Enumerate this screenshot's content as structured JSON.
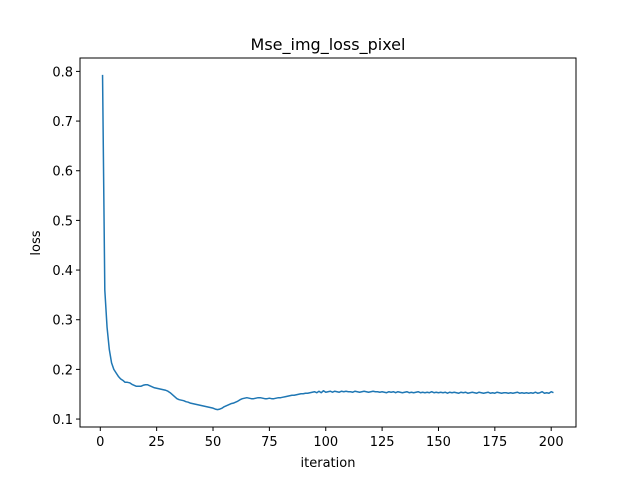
{
  "chart_data": {
    "type": "line",
    "title": "Mse_img_loss_pixel",
    "x_label": "iteration",
    "y_label": "loss",
    "xlim": [
      -9,
      211
    ],
    "ylim": [
      0.084,
      0.827
    ],
    "xticks": [
      0,
      25,
      50,
      75,
      100,
      125,
      150,
      175,
      200
    ],
    "yticks": [
      0.1,
      0.2,
      0.3,
      0.4,
      0.5,
      0.6,
      0.7,
      0.8
    ],
    "grid": false,
    "x": [
      1,
      2,
      3,
      4,
      5,
      6,
      7,
      8,
      9,
      10,
      11,
      12,
      13,
      14,
      15,
      16,
      17,
      18,
      19,
      20,
      21,
      22,
      23,
      24,
      25,
      26,
      27,
      28,
      29,
      30,
      31,
      32,
      33,
      34,
      35,
      36,
      37,
      38,
      39,
      40,
      41,
      42,
      43,
      44,
      45,
      46,
      47,
      48,
      49,
      50,
      51,
      52,
      53,
      54,
      55,
      56,
      57,
      58,
      59,
      60,
      61,
      62,
      63,
      64,
      65,
      66,
      67,
      68,
      69,
      70,
      71,
      72,
      73,
      74,
      75,
      76,
      77,
      78,
      79,
      80,
      81,
      82,
      83,
      84,
      85,
      86,
      87,
      88,
      89,
      90,
      91,
      92,
      93,
      94,
      95,
      96,
      97,
      98,
      99,
      100,
      101,
      102,
      103,
      104,
      105,
      106,
      107,
      108,
      109,
      110,
      111,
      112,
      113,
      114,
      115,
      116,
      117,
      118,
      119,
      120,
      121,
      122,
      123,
      124,
      125,
      126,
      127,
      128,
      129,
      130,
      131,
      132,
      133,
      134,
      135,
      136,
      137,
      138,
      139,
      140,
      141,
      142,
      143,
      144,
      145,
      146,
      147,
      148,
      149,
      150,
      151,
      152,
      153,
      154,
      155,
      156,
      157,
      158,
      159,
      160,
      161,
      162,
      163,
      164,
      165,
      166,
      167,
      168,
      169,
      170,
      171,
      172,
      173,
      174,
      175,
      176,
      177,
      178,
      179,
      180,
      181,
      182,
      183,
      184,
      185,
      186,
      187,
      188,
      189,
      190,
      191,
      192,
      193,
      194,
      195,
      196,
      197,
      198,
      199,
      200,
      201
    ],
    "series": [
      {
        "name": "loss",
        "color": "#1f77b4",
        "values": [
          0.793,
          0.36,
          0.285,
          0.24,
          0.213,
          0.2,
          0.193,
          0.186,
          0.181,
          0.178,
          0.174,
          0.174,
          0.173,
          0.17,
          0.168,
          0.166,
          0.166,
          0.166,
          0.168,
          0.169,
          0.169,
          0.167,
          0.165,
          0.163,
          0.162,
          0.161,
          0.16,
          0.159,
          0.158,
          0.156,
          0.153,
          0.149,
          0.145,
          0.141,
          0.139,
          0.138,
          0.137,
          0.135,
          0.134,
          0.132,
          0.131,
          0.13,
          0.129,
          0.128,
          0.127,
          0.126,
          0.125,
          0.124,
          0.123,
          0.122,
          0.12,
          0.119,
          0.12,
          0.122,
          0.125,
          0.127,
          0.129,
          0.131,
          0.132,
          0.134,
          0.136,
          0.139,
          0.141,
          0.142,
          0.143,
          0.142,
          0.141,
          0.141,
          0.142,
          0.143,
          0.143,
          0.142,
          0.141,
          0.141,
          0.142,
          0.141,
          0.141,
          0.142,
          0.143,
          0.143,
          0.144,
          0.145,
          0.146,
          0.147,
          0.148,
          0.148,
          0.149,
          0.15,
          0.151,
          0.151,
          0.152,
          0.152,
          0.153,
          0.154,
          0.155,
          0.153,
          0.156,
          0.153,
          0.157,
          0.154,
          0.155,
          0.156,
          0.154,
          0.156,
          0.155,
          0.154,
          0.156,
          0.155,
          0.156,
          0.155,
          0.155,
          0.154,
          0.156,
          0.155,
          0.154,
          0.155,
          0.156,
          0.155,
          0.154,
          0.155,
          0.156,
          0.155,
          0.155,
          0.154,
          0.155,
          0.154,
          0.153,
          0.155,
          0.154,
          0.155,
          0.153,
          0.155,
          0.154,
          0.153,
          0.154,
          0.155,
          0.153,
          0.154,
          0.153,
          0.154,
          0.155,
          0.153,
          0.154,
          0.153,
          0.154,
          0.153,
          0.155,
          0.153,
          0.154,
          0.153,
          0.154,
          0.153,
          0.154,
          0.152,
          0.154,
          0.153,
          0.154,
          0.153,
          0.152,
          0.154,
          0.153,
          0.154,
          0.152,
          0.153,
          0.154,
          0.153,
          0.152,
          0.154,
          0.153,
          0.152,
          0.153,
          0.154,
          0.152,
          0.153,
          0.152,
          0.154,
          0.153,
          0.152,
          0.153,
          0.153,
          0.152,
          0.153,
          0.152,
          0.153,
          0.154,
          0.152,
          0.153,
          0.152,
          0.153,
          0.152,
          0.153,
          0.152,
          0.154,
          0.152,
          0.153,
          0.155,
          0.152,
          0.153,
          0.152,
          0.155,
          0.153
        ]
      }
    ]
  }
}
